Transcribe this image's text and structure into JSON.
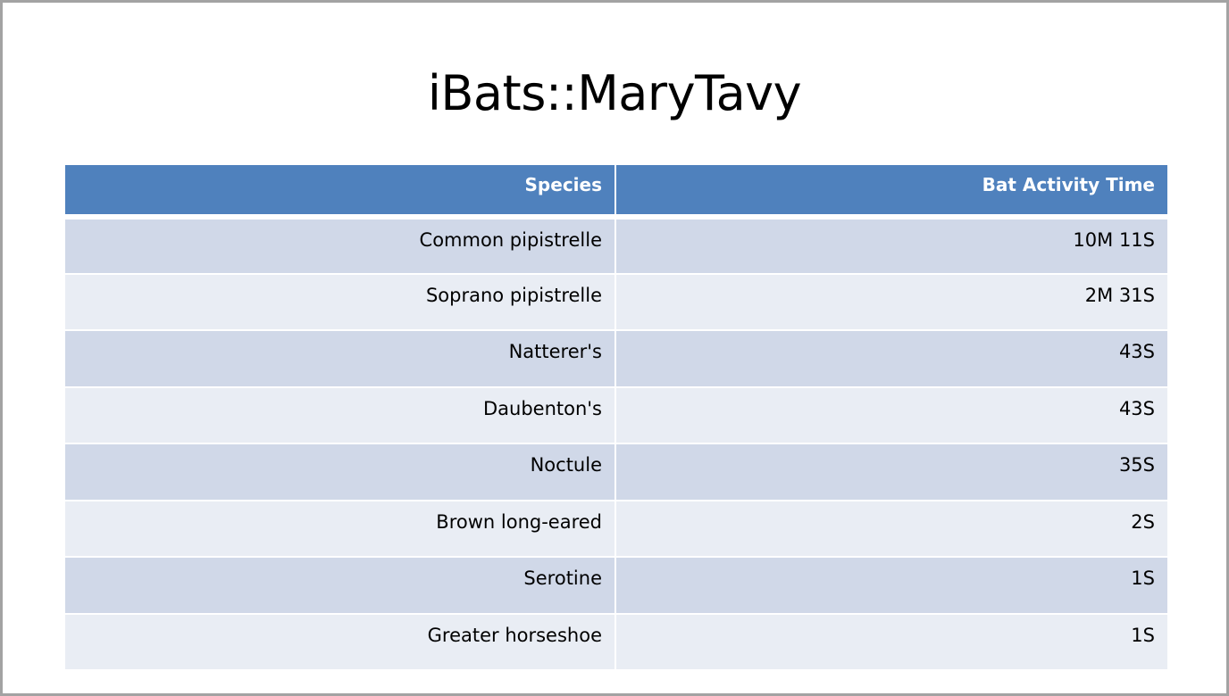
{
  "title": "iBats::MaryTavy",
  "table": {
    "headers": [
      "Species",
      "Bat Activity Time"
    ],
    "rows": [
      {
        "species": "Common pipistrelle",
        "time": "10M 11S"
      },
      {
        "species": "Soprano pipistrelle",
        "time": "2M 31S"
      },
      {
        "species": "Natterer's",
        "time": "43S"
      },
      {
        "species": "Daubenton's",
        "time": "43S"
      },
      {
        "species": "Noctule",
        "time": "35S"
      },
      {
        "species": "Brown long-eared",
        "time": "2S"
      },
      {
        "species": "Serotine",
        "time": "1S"
      },
      {
        "species": "Greater horseshoe",
        "time": "1S"
      }
    ]
  },
  "colors": {
    "header_bg": "#4f81bd",
    "row_odd_bg": "#d0d8e8",
    "row_even_bg": "#e9edf4",
    "slide_border": "#a3a3a3"
  }
}
